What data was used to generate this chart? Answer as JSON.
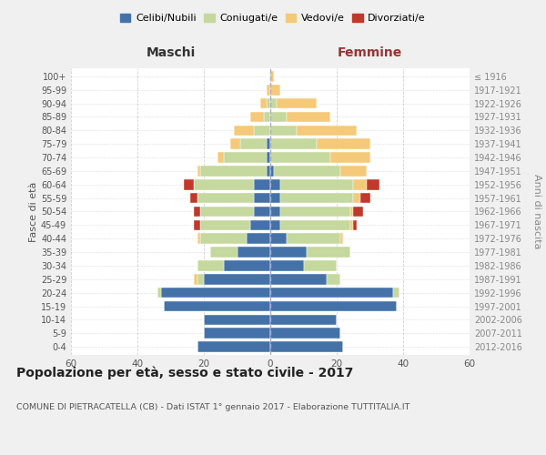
{
  "age_groups": [
    "0-4",
    "5-9",
    "10-14",
    "15-19",
    "20-24",
    "25-29",
    "30-34",
    "35-39",
    "40-44",
    "45-49",
    "50-54",
    "55-59",
    "60-64",
    "65-69",
    "70-74",
    "75-79",
    "80-84",
    "85-89",
    "90-94",
    "95-99",
    "100+"
  ],
  "birth_years": [
    "2012-2016",
    "2007-2011",
    "2002-2006",
    "1997-2001",
    "1992-1996",
    "1987-1991",
    "1982-1986",
    "1977-1981",
    "1972-1976",
    "1967-1971",
    "1962-1966",
    "1957-1961",
    "1952-1956",
    "1947-1951",
    "1942-1946",
    "1937-1941",
    "1932-1936",
    "1927-1931",
    "1922-1926",
    "1917-1921",
    "≤ 1916"
  ],
  "maschi": {
    "celibi": [
      22,
      20,
      20,
      32,
      33,
      20,
      14,
      10,
      7,
      6,
      5,
      5,
      5,
      1,
      1,
      1,
      0,
      0,
      0,
      0,
      0
    ],
    "coniugati": [
      0,
      0,
      0,
      0,
      1,
      2,
      8,
      8,
      14,
      15,
      16,
      17,
      18,
      20,
      13,
      8,
      5,
      2,
      1,
      0,
      0
    ],
    "vedovi": [
      0,
      0,
      0,
      0,
      0,
      1,
      0,
      0,
      1,
      0,
      0,
      0,
      0,
      1,
      2,
      3,
      6,
      4,
      2,
      1,
      0
    ],
    "divorziati": [
      0,
      0,
      0,
      0,
      0,
      0,
      0,
      0,
      0,
      2,
      2,
      2,
      3,
      0,
      0,
      0,
      0,
      0,
      0,
      0,
      0
    ]
  },
  "femmine": {
    "nubili": [
      22,
      21,
      20,
      38,
      37,
      17,
      10,
      11,
      5,
      3,
      3,
      3,
      3,
      1,
      0,
      0,
      0,
      0,
      0,
      0,
      0
    ],
    "coniugate": [
      0,
      0,
      0,
      0,
      2,
      4,
      10,
      13,
      16,
      21,
      21,
      22,
      22,
      20,
      18,
      14,
      8,
      5,
      2,
      0,
      0
    ],
    "vedove": [
      0,
      0,
      0,
      0,
      0,
      0,
      0,
      0,
      1,
      1,
      1,
      2,
      4,
      8,
      12,
      16,
      18,
      13,
      12,
      3,
      1
    ],
    "divorziate": [
      0,
      0,
      0,
      0,
      0,
      0,
      0,
      0,
      0,
      1,
      3,
      3,
      4,
      0,
      0,
      0,
      0,
      0,
      0,
      0,
      0
    ]
  },
  "colors": {
    "celibi": "#4472a8",
    "coniugati": "#c5d89d",
    "vedovi": "#f5c97a",
    "divorziati": "#c0392b"
  },
  "xlim": 60,
  "title": "Popolazione per età, sesso e stato civile - 2017",
  "subtitle": "COMUNE DI PIETRACATELLA (CB) - Dati ISTAT 1° gennaio 2017 - Elaborazione TUTTITALIA.IT",
  "ylabel_left": "Fasce di età",
  "ylabel_right": "Anni di nascita",
  "xlabel_maschi": "Maschi",
  "xlabel_femmine": "Femmine",
  "bg_color": "#f0f0f0",
  "plot_bg_color": "#ffffff",
  "grid_color": "#cccccc",
  "legend_labels": [
    "Celibi/Nubili",
    "Coniugati/e",
    "Vedovi/e",
    "Divorziati/e"
  ]
}
